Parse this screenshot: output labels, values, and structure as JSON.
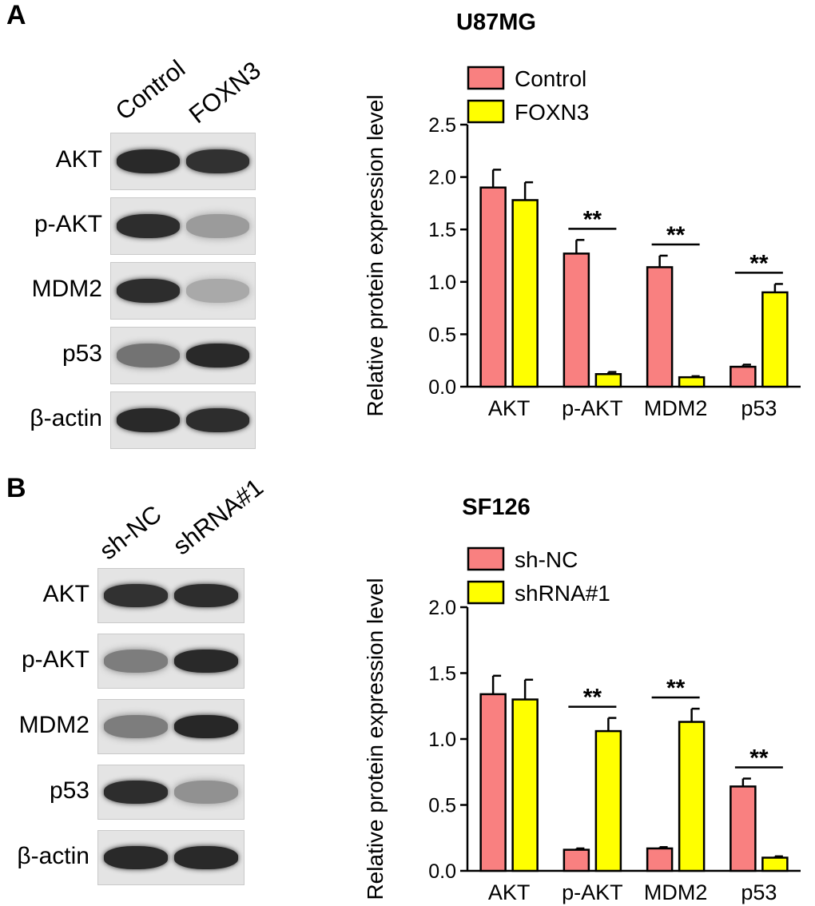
{
  "panels": [
    {
      "label": "A",
      "lanes": [
        "Control",
        "FOXN3"
      ],
      "blot_rows": [
        {
          "label": "AKT",
          "intensity": [
            0.92,
            0.88
          ]
        },
        {
          "label": "p-AKT",
          "intensity": [
            0.9,
            0.35
          ]
        },
        {
          "label": "MDM2",
          "intensity": [
            0.9,
            0.28
          ]
        },
        {
          "label": "p53",
          "intensity": [
            0.55,
            0.92
          ]
        },
        {
          "label": "β-actin",
          "intensity": [
            0.92,
            0.9
          ]
        }
      ],
      "chart_data": {
        "type": "bar",
        "title": "U87MG",
        "ylabel": "Relative protein expression level",
        "categories": [
          "AKT",
          "p-AKT",
          "MDM2",
          "p53"
        ],
        "series": [
          {
            "name": "Control",
            "color": "#f98080",
            "values": [
              1.9,
              1.27,
              1.14,
              0.19
            ],
            "errors": [
              0.17,
              0.13,
              0.11,
              0.02
            ]
          },
          {
            "name": "FOXN3",
            "color": "#ffff00",
            "values": [
              1.78,
              0.12,
              0.09,
              0.9
            ],
            "errors": [
              0.17,
              0.02,
              0.01,
              0.08
            ]
          }
        ],
        "significance": [
          "",
          "**",
          "**",
          "**"
        ],
        "ylim": [
          0,
          2.5
        ],
        "yticks": [
          "0.0",
          "0.5",
          "1.0",
          "1.5",
          "2.0",
          "2.5"
        ],
        "legend": "top-left"
      }
    },
    {
      "label": "B",
      "lanes": [
        "sh-NC",
        "shRNA#1"
      ],
      "blot_rows": [
        {
          "label": "AKT",
          "intensity": [
            0.88,
            0.9
          ]
        },
        {
          "label": "p-AKT",
          "intensity": [
            0.5,
            0.92
          ]
        },
        {
          "label": "MDM2",
          "intensity": [
            0.5,
            0.93
          ]
        },
        {
          "label": "p53",
          "intensity": [
            0.9,
            0.4
          ]
        },
        {
          "label": "β-actin",
          "intensity": [
            0.92,
            0.92
          ]
        }
      ],
      "chart_data": {
        "type": "bar",
        "title": "SF126",
        "ylabel": "Relative protein expression level",
        "categories": [
          "AKT",
          "p-AKT",
          "MDM2",
          "p53"
        ],
        "series": [
          {
            "name": "sh-NC",
            "color": "#f98080",
            "values": [
              1.34,
              0.16,
              0.17,
              0.64
            ],
            "errors": [
              0.14,
              0.01,
              0.01,
              0.06
            ]
          },
          {
            "name": "shRNA#1",
            "color": "#ffff00",
            "values": [
              1.3,
              1.06,
              1.13,
              0.1
            ],
            "errors": [
              0.15,
              0.1,
              0.1,
              0.01
            ]
          }
        ],
        "significance": [
          "",
          "**",
          "**",
          "**"
        ],
        "ylim": [
          0,
          2.0
        ],
        "yticks": [
          "0.0",
          "0.5",
          "1.0",
          "1.5",
          "2.0"
        ],
        "legend": "top-left"
      }
    }
  ]
}
